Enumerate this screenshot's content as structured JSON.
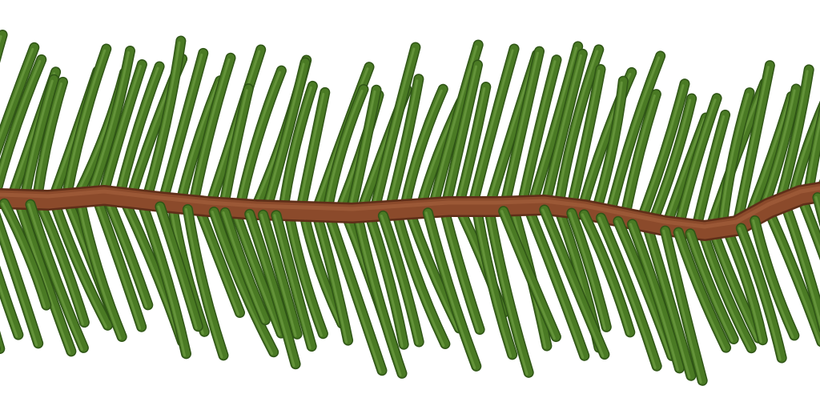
{
  "scene": {
    "subject": "pine-branch",
    "background_color": "#ffffff",
    "colors": {
      "needle_base": "#4a7a24",
      "needle_dark": "#2f5516",
      "needle_light": "#78a84a",
      "stem_base": "#8b4a2b",
      "stem_dark": "#5e2e18",
      "stem_light": "#b06a45"
    },
    "needle_rows": [
      "upper",
      "lower"
    ]
  }
}
